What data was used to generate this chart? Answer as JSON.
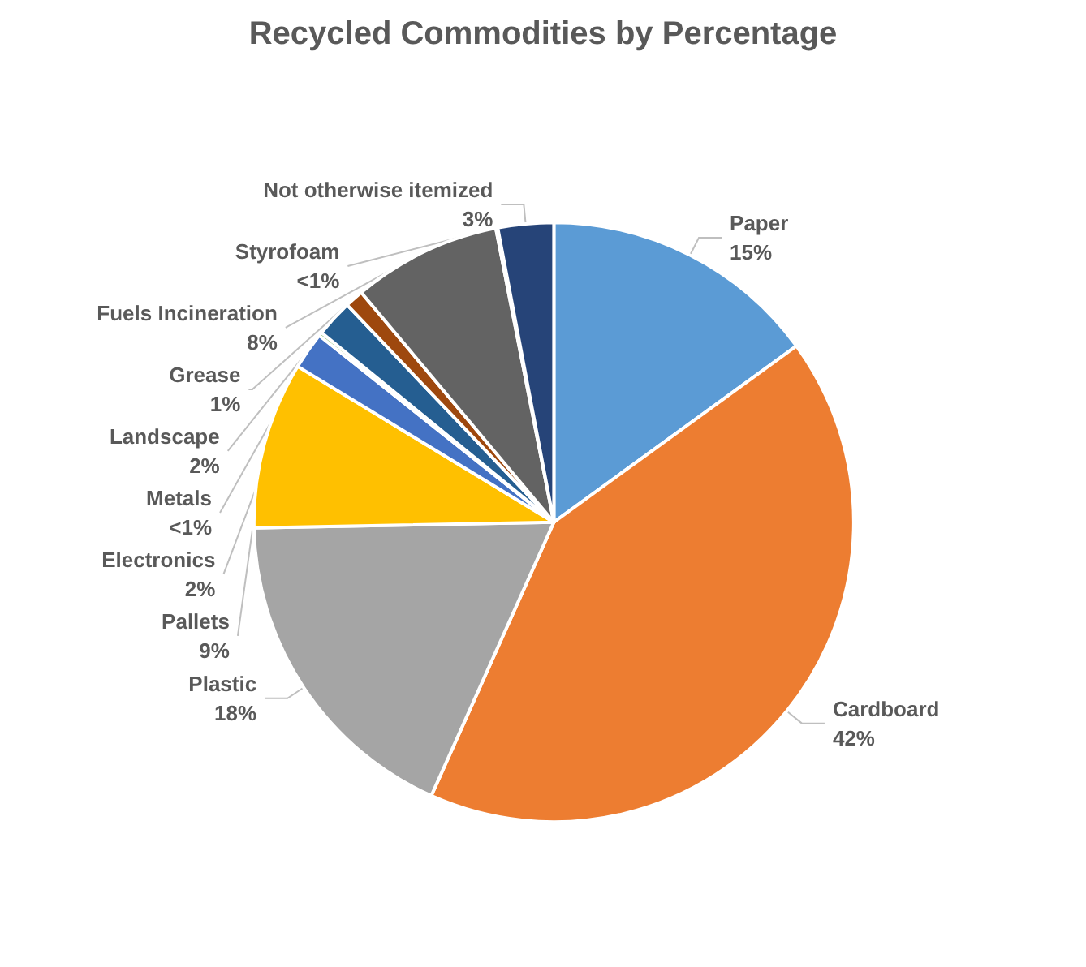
{
  "chart_data": {
    "type": "pie",
    "title": "Recycled Commodities by Percentage",
    "categories": [
      "Paper",
      "Cardboard",
      "Plastic",
      "Pallets",
      "Electronics",
      "Metals",
      "Landscape",
      "Grease",
      "Fuels Incineration",
      "Styrofoam",
      "Not otherwise itemized"
    ],
    "values": [
      15,
      41.7,
      18,
      9,
      2,
      0.2,
      2,
      1,
      8,
      0.1,
      3
    ],
    "value_labels": [
      "15%",
      "42%",
      "18%",
      "9%",
      "2%",
      "<1%",
      "2%",
      "1%",
      "8%",
      "<1%",
      "3%"
    ],
    "colors": [
      "#5b9bd5",
      "#ed7d31",
      "#a5a5a5",
      "#ffc000",
      "#4472c4",
      "#70ad47",
      "#255e91",
      "#9e480e",
      "#636363",
      "#997300",
      "#264478"
    ],
    "legend": false
  }
}
